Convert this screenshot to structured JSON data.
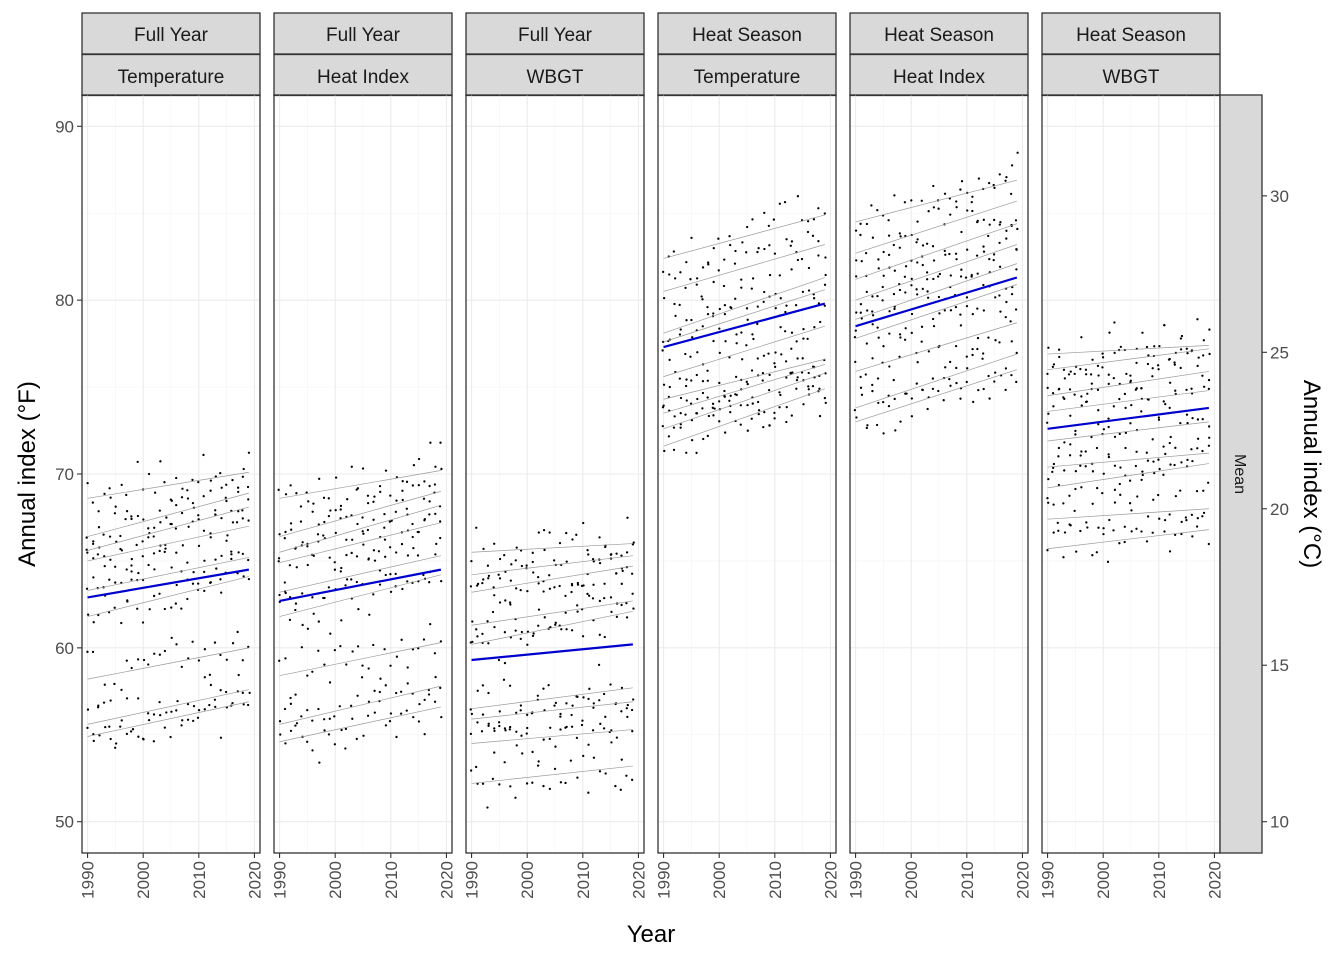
{
  "chart_data": {
    "type": "scatter",
    "facet_rows": [
      "Mean"
    ],
    "x_axis": {
      "label": "Year",
      "range": [
        1989,
        2021
      ],
      "ticks": [
        1990,
        2000,
        2010,
        2020
      ]
    },
    "y_axis_left": {
      "label": "Annual index (°F)",
      "range": [
        48.2,
        91.8
      ],
      "ticks": [
        50,
        60,
        70,
        80,
        90
      ]
    },
    "y_axis_right": {
      "label": "Annual index (°C)",
      "ticks": [
        10,
        15,
        20,
        25,
        30
      ]
    },
    "grid": true,
    "panels": [
      {
        "period": "Full Year",
        "metric": "Temperature",
        "mean_trend": {
          "x": [
            1990,
            2019
          ],
          "y": [
            62.9,
            64.5
          ]
        },
        "site_trends": [
          [
            68.6,
            70.1
          ],
          [
            66.4,
            68.9
          ],
          [
            65.6,
            68.1
          ],
          [
            65.0,
            67.0
          ],
          [
            63.3,
            65.2
          ],
          [
            61.8,
            64.1
          ],
          [
            58.2,
            60.0
          ],
          [
            55.6,
            57.6
          ],
          [
            54.9,
            56.9
          ]
        ],
        "point_stats": {
          "n": 300,
          "min": 52.1,
          "max": 71.9
        }
      },
      {
        "period": "Full Year",
        "metric": "Heat Index",
        "mean_trend": {
          "x": [
            1990,
            2019
          ],
          "y": [
            62.7,
            64.5
          ]
        },
        "site_trends": [
          [
            68.6,
            70.2
          ],
          [
            66.4,
            69.0
          ],
          [
            65.5,
            68.2
          ],
          [
            64.9,
            67.2
          ],
          [
            63.2,
            65.3
          ],
          [
            61.8,
            64.2
          ],
          [
            58.4,
            60.3
          ],
          [
            55.6,
            57.8
          ],
          [
            54.6,
            56.6
          ]
        ],
        "point_stats": {
          "n": 300,
          "min": 52.2,
          "max": 71.8
        }
      },
      {
        "period": "Full Year",
        "metric": "WBGT",
        "mean_trend": {
          "x": [
            1990,
            2019
          ],
          "y": [
            59.3,
            60.2
          ]
        },
        "site_trends": [
          [
            65.5,
            66.0
          ],
          [
            64.2,
            65.3
          ],
          [
            63.2,
            64.7
          ],
          [
            61.3,
            62.7
          ],
          [
            60.2,
            62.1
          ],
          [
            56.5,
            57.7
          ],
          [
            55.9,
            56.9
          ],
          [
            54.5,
            55.3
          ],
          [
            52.2,
            53.2
          ]
        ],
        "point_stats": {
          "n": 300,
          "min": 50.1,
          "max": 67.9
        }
      },
      {
        "period": "Heat Season",
        "metric": "Temperature",
        "mean_trend": {
          "x": [
            1990,
            2019
          ],
          "y": [
            77.3,
            79.8
          ]
        },
        "site_trends": [
          [
            82.4,
            84.9
          ],
          [
            80.5,
            83.2
          ],
          [
            78.1,
            81.3
          ],
          [
            77.6,
            80.6
          ],
          [
            75.6,
            78.5
          ],
          [
            73.5,
            76.3
          ],
          [
            72.6,
            75.8
          ],
          [
            71.6,
            74.9
          ],
          [
            74.3,
            76.6
          ]
        ],
        "point_stats": {
          "n": 300,
          "min": 70.6,
          "max": 87.9
        }
      },
      {
        "period": "Heat Season",
        "metric": "Heat Index",
        "mean_trend": {
          "x": [
            1990,
            2019
          ],
          "y": [
            78.5,
            81.3
          ]
        },
        "site_trends": [
          [
            84.5,
            86.9
          ],
          [
            82.7,
            85.7
          ],
          [
            81.2,
            84.4
          ],
          [
            78.9,
            82.1
          ],
          [
            77.8,
            80.9
          ],
          [
            75.9,
            78.7
          ],
          [
            73.8,
            76.9
          ],
          [
            73.0,
            76.0
          ],
          [
            80.0,
            83.2
          ]
        ],
        "point_stats": {
          "n": 300,
          "min": 71.8,
          "max": 88.9
        }
      },
      {
        "period": "Heat Season",
        "metric": "WBGT",
        "mean_trend": {
          "x": [
            1990,
            2019
          ],
          "y": [
            72.6,
            73.8
          ]
        },
        "site_trends": [
          [
            76.9,
            77.4
          ],
          [
            76.0,
            77.2
          ],
          [
            74.5,
            75.9
          ],
          [
            73.6,
            74.8
          ],
          [
            71.9,
            73.0
          ],
          [
            69.2,
            70.6
          ],
          [
            67.4,
            68.0
          ],
          [
            65.7,
            66.8
          ],
          [
            70.4,
            71.2
          ]
        ],
        "point_stats": {
          "n": 300,
          "min": 64.9,
          "max": 78.9
        }
      }
    ]
  }
}
